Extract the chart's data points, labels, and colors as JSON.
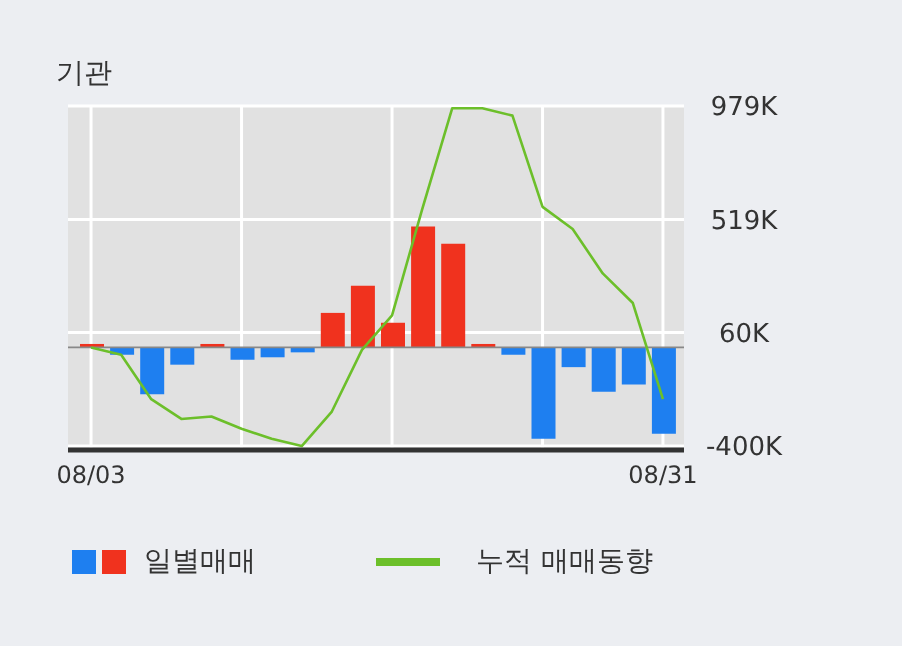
{
  "chart_data": {
    "type": "bar",
    "title": "기관",
    "categories": [
      "08/03",
      null,
      null,
      null,
      null,
      null,
      null,
      null,
      null,
      null,
      null,
      null,
      null,
      null,
      null,
      null,
      null,
      null,
      null,
      "08/31"
    ],
    "series": [
      {
        "name": "일별매매",
        "colors": [
          "#f0321e",
          "#1e7ff0",
          "#1e7ff0",
          "#1e7ff0",
          "#f0321e",
          "#1e7ff0",
          "#1e7ff0",
          "#1e7ff0",
          "#f0321e",
          "#f0321e",
          "#f0321e",
          "#f0321e",
          "#f0321e",
          "#f0321e",
          "#1e7ff0",
          "#1e7ff0",
          "#1e7ff0",
          "#1e7ff0",
          "#1e7ff0",
          "#1e7ff0"
        ],
        "values": [
          14000,
          -30000,
          -190000,
          -70000,
          14000,
          -50000,
          -40000,
          -20000,
          140000,
          250000,
          100000,
          490000,
          420000,
          14000,
          -30000,
          -370000,
          -80000,
          -180000,
          -150000,
          -350000
        ]
      },
      {
        "type": "line",
        "name": "누적 매매동향",
        "color": "#6cbf2a",
        "values": [
          0,
          -30000,
          -210000,
          -290000,
          -280000,
          -330000,
          -370000,
          -400000,
          -260000,
          -10000,
          130000,
          560000,
          970000,
          970000,
          940000,
          570000,
          480000,
          300000,
          180000,
          -210000
        ]
      }
    ],
    "ylim": [
      -416000,
      979000
    ],
    "yticks": [
      {
        "value": 979000,
        "label": "979K"
      },
      {
        "value": 519000,
        "label": "519K"
      },
      {
        "value": 60000,
        "label": "60K"
      },
      {
        "value": -400000,
        "label": "-400K"
      }
    ],
    "ref_lines": [
      {
        "axis": "y",
        "value": 0,
        "color": "#888888"
      }
    ],
    "grid": true,
    "legend": "bottom",
    "marker": "none",
    "line_style": "solid"
  }
}
